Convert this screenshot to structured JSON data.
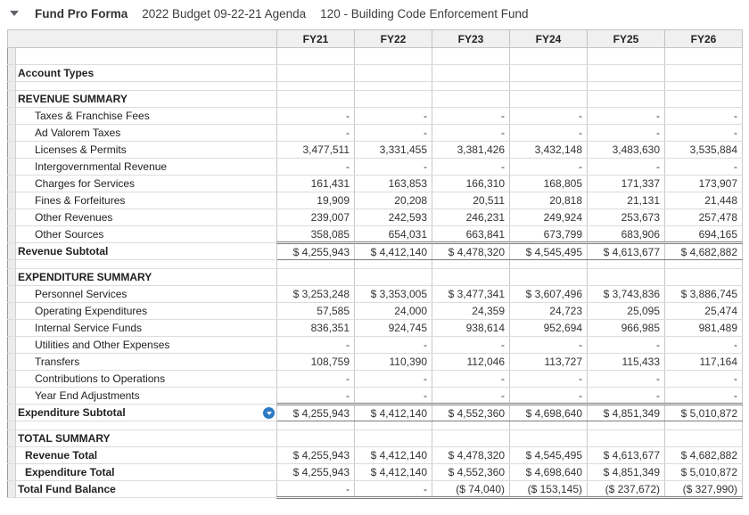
{
  "toolbar": {
    "title": "Fund Pro Forma",
    "budget": "2022 Budget 09-22-21 Agenda",
    "fund": "120 - Building Code Enforcement Fund"
  },
  "icons": {
    "toolbar_caret": "caret-down-icon",
    "expenditure_subtotal_marker": "chevron-down-circle-icon"
  },
  "colors": {
    "accent_blue": "#2b79c2",
    "header_bg": "#f0f0f0",
    "gutter_bg": "#ececec",
    "rule_dark": "#7d7d7d"
  },
  "table": {
    "corner_label": "",
    "columns": [
      "FY21",
      "FY22",
      "FY23",
      "FY24",
      "FY25",
      "FY26"
    ],
    "rows": [
      {
        "type": "empty",
        "label": "",
        "values": [
          "",
          "",
          "",
          "",
          "",
          ""
        ]
      },
      {
        "type": "section",
        "label": "Account Types",
        "values": [
          "",
          "",
          "",
          "",
          "",
          ""
        ]
      },
      {
        "type": "spacer",
        "label": "",
        "values": [
          "",
          "",
          "",
          "",
          "",
          ""
        ]
      },
      {
        "type": "section",
        "label": "REVENUE SUMMARY",
        "values": [
          "",
          "",
          "",
          "",
          "",
          ""
        ]
      },
      {
        "type": "detail",
        "label": "Taxes & Franchise Fees",
        "values": [
          "-",
          "-",
          "-",
          "-",
          "-",
          "-"
        ]
      },
      {
        "type": "detail",
        "label": "Ad Valorem Taxes",
        "values": [
          "-",
          "-",
          "-",
          "-",
          "-",
          "-"
        ]
      },
      {
        "type": "detail",
        "label": "Licenses & Permits",
        "values": [
          "3,477,511",
          "3,331,455",
          "3,381,426",
          "3,432,148",
          "3,483,630",
          "3,535,884"
        ]
      },
      {
        "type": "detail",
        "label": "Intergovernmental Revenue",
        "values": [
          "-",
          "-",
          "-",
          "-",
          "-",
          "-"
        ]
      },
      {
        "type": "detail",
        "label": "Charges for Services",
        "values": [
          "161,431",
          "163,853",
          "166,310",
          "168,805",
          "171,337",
          "173,907"
        ]
      },
      {
        "type": "detail",
        "label": "Fines & Forfeitures",
        "values": [
          "19,909",
          "20,208",
          "20,511",
          "20,818",
          "21,131",
          "21,448"
        ]
      },
      {
        "type": "detail",
        "label": "Other Revenues",
        "values": [
          "239,007",
          "242,593",
          "246,231",
          "249,924",
          "253,673",
          "257,478"
        ]
      },
      {
        "type": "detail",
        "label": "Other Sources",
        "values": [
          "358,085",
          "654,031",
          "663,841",
          "673,799",
          "683,906",
          "694,165"
        ]
      },
      {
        "type": "subtotal",
        "label": "Revenue Subtotal",
        "values": [
          "$ 4,255,943",
          "$ 4,412,140",
          "$ 4,478,320",
          "$ 4,545,495",
          "$ 4,613,677",
          "$ 4,682,882"
        ]
      },
      {
        "type": "spacer",
        "label": "",
        "values": [
          "",
          "",
          "",
          "",
          "",
          ""
        ]
      },
      {
        "type": "section",
        "label": "EXPENDITURE SUMMARY",
        "values": [
          "",
          "",
          "",
          "",
          "",
          ""
        ]
      },
      {
        "type": "detail",
        "label": "Personnel Services",
        "values": [
          "$ 3,253,248",
          "$ 3,353,005",
          "$ 3,477,341",
          "$ 3,607,496",
          "$ 3,743,836",
          "$ 3,886,745"
        ]
      },
      {
        "type": "detail",
        "label": "Operating Expenditures",
        "values": [
          "57,585",
          "24,000",
          "24,359",
          "24,723",
          "25,095",
          "25,474"
        ]
      },
      {
        "type": "detail",
        "label": "Internal Service Funds",
        "values": [
          "836,351",
          "924,745",
          "938,614",
          "952,694",
          "966,985",
          "981,489"
        ]
      },
      {
        "type": "detail",
        "label": "Utilities and Other Expenses",
        "values": [
          "-",
          "-",
          "-",
          "-",
          "-",
          "-"
        ]
      },
      {
        "type": "detail",
        "label": "Transfers",
        "values": [
          "108,759",
          "110,390",
          "112,046",
          "113,727",
          "115,433",
          "117,164"
        ]
      },
      {
        "type": "detail",
        "label": "Contributions to Operations",
        "values": [
          "-",
          "-",
          "-",
          "-",
          "-",
          "-"
        ]
      },
      {
        "type": "detail",
        "label": "Year End Adjustments",
        "values": [
          "-",
          "-",
          "-",
          "-",
          "-",
          "-"
        ]
      },
      {
        "type": "subtotal",
        "label": "Expenditure Subtotal",
        "icon": true,
        "values": [
          "$ 4,255,943",
          "$ 4,412,140",
          "$ 4,552,360",
          "$ 4,698,640",
          "$ 4,851,349",
          "$ 5,010,872"
        ]
      },
      {
        "type": "spacer",
        "label": "",
        "values": [
          "",
          "",
          "",
          "",
          "",
          ""
        ]
      },
      {
        "type": "section",
        "label": "TOTAL SUMMARY",
        "values": [
          "",
          "",
          "",
          "",
          "",
          ""
        ]
      },
      {
        "type": "total",
        "label": "Revenue Total",
        "values": [
          "$ 4,255,943",
          "$ 4,412,140",
          "$ 4,478,320",
          "$ 4,545,495",
          "$ 4,613,677",
          "$ 4,682,882"
        ]
      },
      {
        "type": "total",
        "label": "Expenditure Total",
        "values": [
          "$ 4,255,943",
          "$ 4,412,140",
          "$ 4,552,360",
          "$ 4,698,640",
          "$ 4,851,349",
          "$ 5,010,872"
        ]
      },
      {
        "type": "grandtotal",
        "label": "Total Fund Balance",
        "values": [
          "-",
          "-",
          "($ 74,040)",
          "($ 153,145)",
          "($ 237,672)",
          "($ 327,990)"
        ]
      }
    ]
  }
}
